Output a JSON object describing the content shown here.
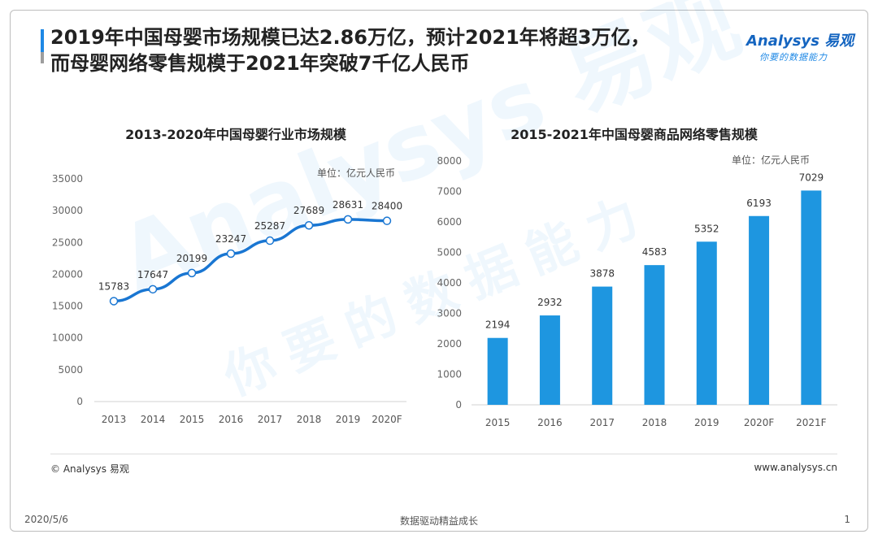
{
  "header": {
    "title_line1": "2019年中国母婴市场规模已达2.86万亿，预计2021年将超3万亿，",
    "title_line2": "而母婴网络零售规模于2021年突破7千亿人民币"
  },
  "logo": {
    "main": "Analysys 易观",
    "sub": "你要的数据能力"
  },
  "watermark": {
    "brand": "Analysys 易观",
    "slogan": "你要的数据能力"
  },
  "footer": {
    "copyright": "© Analysys 易观",
    "website": "www.analysys.cn",
    "date": "2020/5/6",
    "slogan": "数据驱动精益成长",
    "page": "1"
  },
  "colors": {
    "accent": "#1e88e5",
    "line": "#1976d2",
    "bar": "#1e96e0"
  },
  "chart_data": [
    {
      "type": "line",
      "title": "2013-2020年中国母婴行业市场规模",
      "unit": "单位：亿元人民币",
      "categories": [
        "2013",
        "2014",
        "2015",
        "2016",
        "2017",
        "2018",
        "2019",
        "2020F"
      ],
      "values": [
        15783,
        17647,
        20199,
        23247,
        25287,
        27689,
        28631,
        28400
      ],
      "ylim": [
        0,
        35000
      ],
      "yticks": [
        0,
        5000,
        10000,
        15000,
        20000,
        25000,
        30000,
        35000
      ]
    },
    {
      "type": "bar",
      "title": "2015-2021年中国母婴商品网络零售规模",
      "unit": "单位：亿元人民币",
      "categories": [
        "2015",
        "2016",
        "2017",
        "2018",
        "2019",
        "2020F",
        "2021F"
      ],
      "values": [
        2194,
        2932,
        3878,
        4583,
        5352,
        6193,
        7029
      ],
      "ylim": [
        0,
        8000
      ],
      "yticks": [
        0,
        1000,
        2000,
        3000,
        4000,
        5000,
        6000,
        7000,
        8000
      ]
    }
  ]
}
